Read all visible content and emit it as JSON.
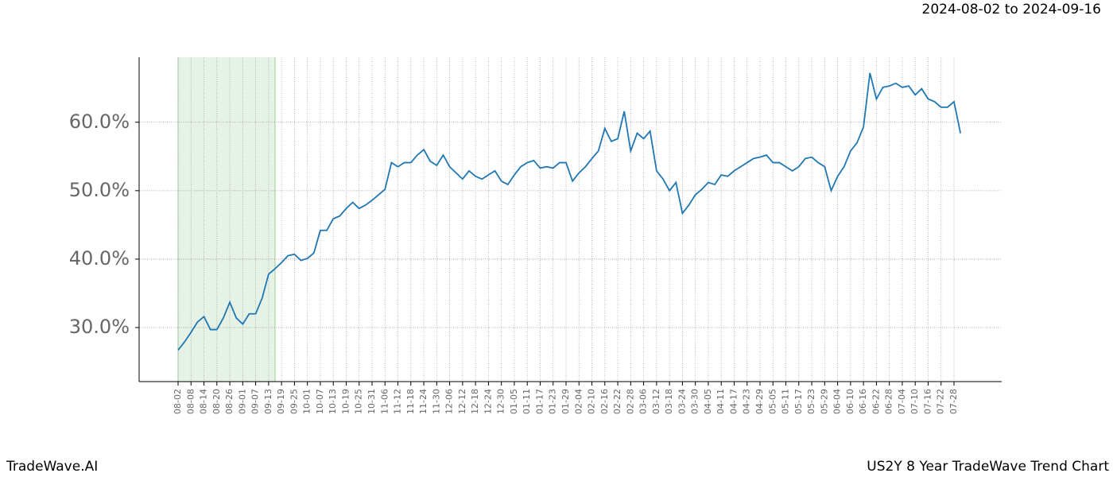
{
  "chart_data": {
    "type": "line",
    "title": "US2Y 8 Year TradeWave Trend Chart",
    "subtitle": "2024-08-02 to 2024-09-16",
    "brand": "TradeWave.AI",
    "categories": [
      "08-02",
      null,
      "08-08",
      null,
      "08-14",
      null,
      "08-20",
      null,
      "08-26",
      null,
      "09-01",
      null,
      "09-07",
      null,
      "09-13",
      null,
      "09-19",
      null,
      "09-25",
      null,
      "10-01",
      null,
      "10-07",
      null,
      "10-13",
      null,
      "10-19",
      null,
      "10-25",
      null,
      "10-31",
      null,
      "11-06",
      null,
      "11-12",
      null,
      "11-18",
      null,
      "11-24",
      null,
      "11-30",
      null,
      "12-06",
      null,
      "12-12",
      null,
      "12-18",
      null,
      "12-24",
      null,
      "12-30",
      null,
      "01-05",
      null,
      "01-11",
      null,
      "01-17",
      null,
      "01-23",
      null,
      "01-29",
      null,
      "02-04",
      null,
      "02-10",
      null,
      "02-16",
      null,
      "02-22",
      null,
      "02-28",
      null,
      "03-06",
      null,
      "03-12",
      null,
      "03-18",
      null,
      "03-24",
      null,
      "03-30",
      null,
      "04-05",
      null,
      "04-11",
      null,
      "04-17",
      null,
      "04-23",
      null,
      "04-29",
      null,
      "05-05",
      null,
      "05-11",
      null,
      "05-17",
      null,
      "05-23",
      null,
      "05-29",
      null,
      "06-04",
      null,
      "06-10",
      null,
      "06-16",
      null,
      "06-22",
      null,
      "06-28",
      null,
      "07-04",
      null,
      "07-10",
      null,
      "07-16",
      null,
      "07-22",
      null,
      "07-28",
      null
    ],
    "series": [
      {
        "color": "#1f77b4",
        "values": [
          26.7,
          27.9,
          29.3,
          30.8,
          31.6,
          29.7,
          29.7,
          31.4,
          33.7,
          31.4,
          30.5,
          32.0,
          32.0,
          34.3,
          37.8,
          38.6,
          39.5,
          40.5,
          40.7,
          39.8,
          40.1,
          40.9,
          44.2,
          44.2,
          45.9,
          46.3,
          47.4,
          48.3,
          47.4,
          47.9,
          48.6,
          49.4,
          50.2,
          54.1,
          53.5,
          54.1,
          54.1,
          55.2,
          56.0,
          54.3,
          53.7,
          55.2,
          53.5,
          52.6,
          51.7,
          52.9,
          52.1,
          51.7,
          52.3,
          52.9,
          51.4,
          50.9,
          52.3,
          53.5,
          54.1,
          54.4,
          53.3,
          53.5,
          53.3,
          54.1,
          54.1,
          51.4,
          52.6,
          53.5,
          54.7,
          55.8,
          59.1,
          57.2,
          57.6,
          61.6,
          55.8,
          58.4,
          57.6,
          58.7,
          52.9,
          51.7,
          50.0,
          51.2,
          46.7,
          47.9,
          49.4,
          50.2,
          51.2,
          50.9,
          52.3,
          52.1,
          52.9,
          53.5,
          54.1,
          54.7,
          54.9,
          55.2,
          54.1,
          54.1,
          53.5,
          52.9,
          53.5,
          54.7,
          54.9,
          54.1,
          53.5,
          50.0,
          52.1,
          53.5,
          55.8,
          57.0,
          59.3,
          67.2,
          63.4,
          65.1,
          65.3,
          65.7,
          65.1,
          65.3,
          64.0,
          64.9,
          63.4,
          63.0,
          62.2,
          62.2,
          63.0,
          58.4
        ]
      }
    ],
    "highlight": {
      "from": 0,
      "to": 15,
      "color": "#e6f2e6"
    },
    "ylim": [
      22.1,
      69.5
    ],
    "yticks": [
      {
        "value": 30,
        "label": "30.0%"
      },
      {
        "value": 40,
        "label": "40.0%"
      },
      {
        "value": 50,
        "label": "50.0%"
      },
      {
        "value": 60,
        "label": "60.0%"
      }
    ],
    "grid": true
  }
}
